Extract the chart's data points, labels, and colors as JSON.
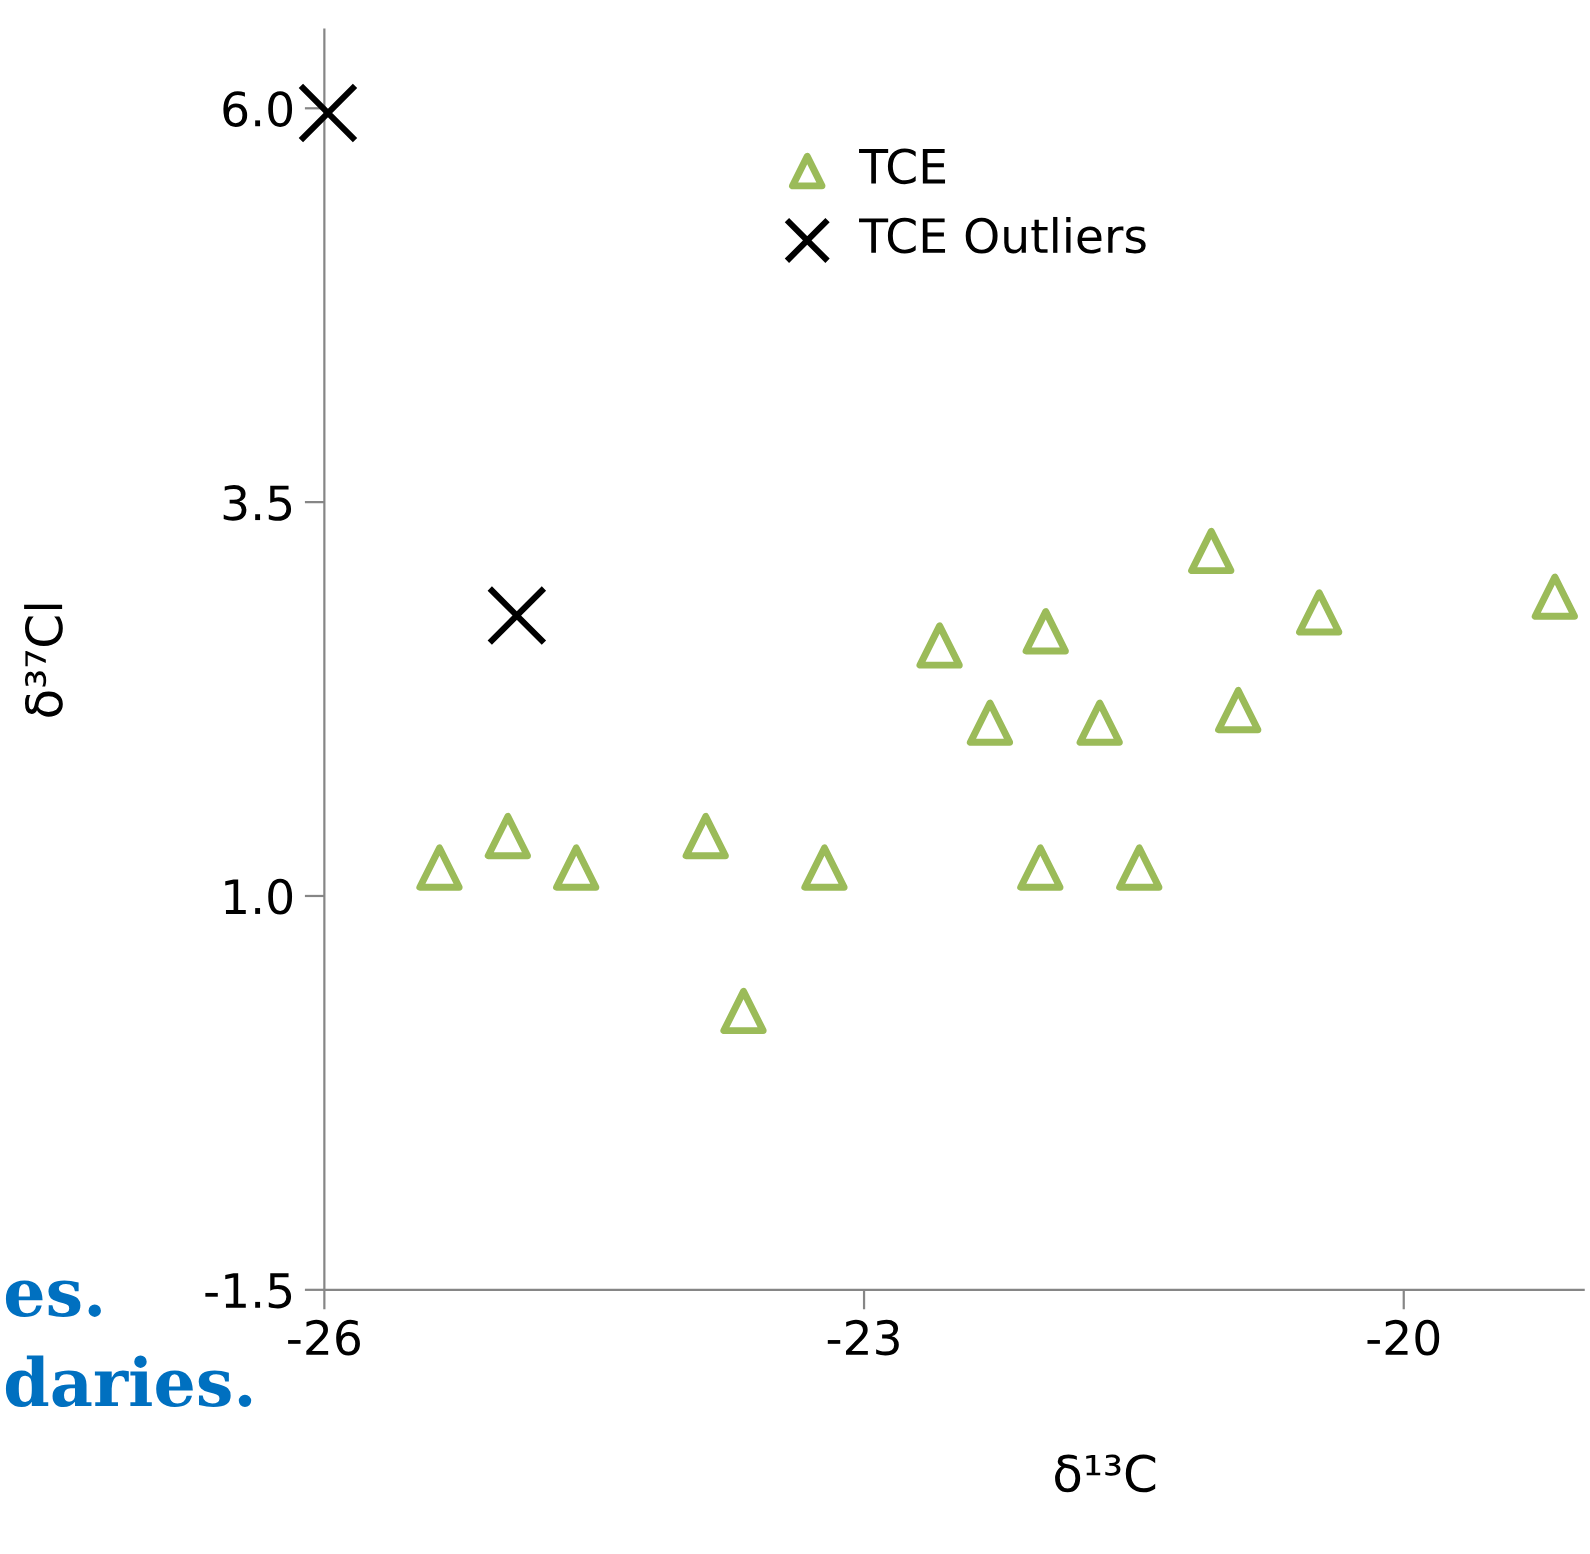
{
  "chart_data": {
    "type": "scatter",
    "xlabel": "δ¹³C",
    "ylabel": "δ³⁷Cl",
    "xlim": [
      -26,
      -19
    ],
    "xticks": [
      -26,
      -23,
      -20
    ],
    "ylim": [
      -1.5,
      6.5
    ],
    "yticks": [
      -1.5,
      {
        "value": 1,
        "label": "1.0"
      },
      3.5,
      {
        "value": 6,
        "label": "6.0"
      }
    ],
    "grid": false,
    "legend": "top",
    "series": [
      {
        "name": "TCE",
        "color": "#9bbb59",
        "marker": "triangle",
        "x": [
          -25.36,
          -24.98,
          -24.6,
          -23.88,
          -23.67,
          -23.22,
          -22.58,
          -22.3,
          -21.99,
          -22.02,
          -21.69,
          -21.47,
          -21.07,
          -20.92,
          -20.47,
          -19.16
        ],
        "values": [
          1.18,
          1.38,
          1.18,
          1.38,
          0.27,
          1.18,
          2.59,
          2.1,
          2.68,
          1.18,
          2.1,
          1.18,
          3.19,
          2.18,
          2.8,
          2.9
        ]
      },
      {
        "name": "TCE Outliers",
        "color": "#000000",
        "marker": "cross",
        "x": [
          -25.98,
          -24.93
        ],
        "values": [
          5.97,
          2.78
        ]
      }
    ],
    "annotations": [
      "es.",
      "daries."
    ]
  }
}
